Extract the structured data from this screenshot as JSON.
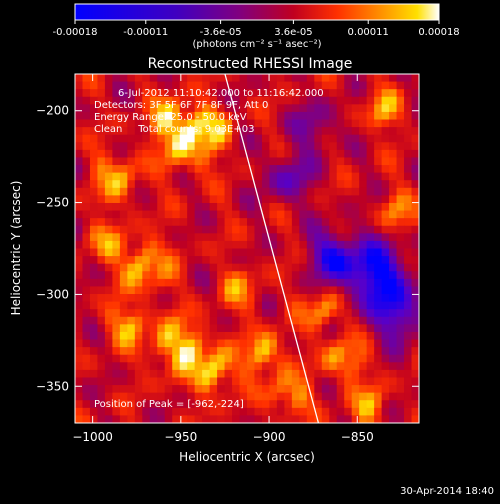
{
  "figure": {
    "title": "Reconstructed RHESSI Image",
    "colorbar": {
      "ticks": [
        "-0.00018",
        "-0.00011",
        "-3.6e-05",
        "3.6e-05",
        "0.00011",
        "0.00018"
      ],
      "tick_values": [
        -0.00018,
        -0.00011,
        -3.6e-05,
        3.6e-05,
        0.00011,
        0.00018
      ],
      "range": [
        -0.00018,
        0.00018
      ],
      "unit_label": "(photons cm⁻² s⁻¹ asec⁻²)",
      "colormap": [
        "#0000ff",
        "#5500cc",
        "#800080",
        "#c00020",
        "#ff3000",
        "#ff9000",
        "#ffdd00",
        "#ffffff"
      ]
    },
    "axes": {
      "xlabel": "Heliocentric X (arcsec)",
      "ylabel": "Heliocentric Y (arcsec)",
      "xlim": [
        -1010,
        -815
      ],
      "ylim": [
        -370,
        -180
      ],
      "xticks": [
        {
          "value": -1000,
          "label": "−1000"
        },
        {
          "value": -950,
          "label": "−950"
        },
        {
          "value": -900,
          "label": "−900"
        },
        {
          "value": -850,
          "label": "−850"
        }
      ],
      "yticks": [
        {
          "value": -200,
          "label": "−200"
        },
        {
          "value": -250,
          "label": "−250"
        },
        {
          "value": -300,
          "label": "−300"
        },
        {
          "value": -350,
          "label": "−350"
        }
      ],
      "limb_line": {
        "start": [
          -925,
          -180
        ],
        "end": [
          -872,
          -370
        ]
      }
    },
    "info_lines": [
      "6-Jul-2012 11:10:42.000 to 11:16:42.000",
      "Detectors: 3F 5F 6F 7F 8F 9F, Att 0",
      "Energy Range: 25.0 - 50.0 keV",
      "Clean     Total counts: 9.03E+03"
    ],
    "peak_label": "Position of Peak = [-962,-224]",
    "footer_date": "30-Apr-2014 18:40",
    "colors": {
      "background": "#000000",
      "text": "#ffffff",
      "low": "#0000ff",
      "mid": "#800080",
      "high": "#ffffff"
    }
  }
}
